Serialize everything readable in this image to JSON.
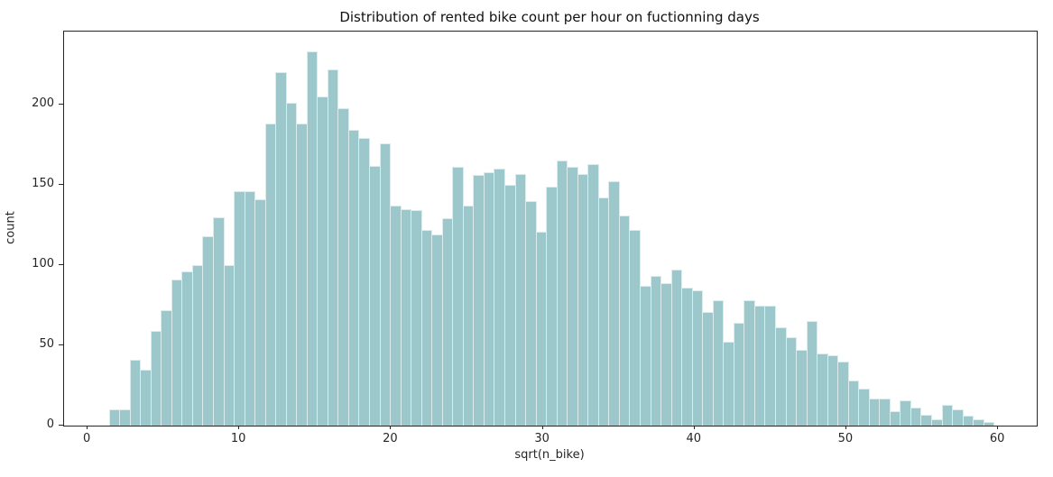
{
  "chart_data": {
    "type": "bar",
    "subtype": "histogram",
    "title": "Distribution of rented bike count per hour on fuctionning days",
    "xlabel": "sqrt(n_bike)",
    "ylabel": "count",
    "bin_start": 1.4,
    "bin_width": 0.686,
    "counts": [
      10,
      10,
      41,
      35,
      59,
      72,
      91,
      96,
      100,
      118,
      130,
      100,
      146,
      146,
      141,
      188,
      220,
      201,
      188,
      233,
      205,
      222,
      198,
      184,
      179,
      162,
      176,
      137,
      135,
      134,
      122,
      119,
      129,
      161,
      137,
      156,
      158,
      160,
      150,
      157,
      140,
      121,
      149,
      165,
      161,
      157,
      163,
      142,
      152,
      131,
      122,
      87,
      93,
      89,
      97,
      86,
      84,
      71,
      78,
      52,
      64,
      78,
      75,
      75,
      61,
      55,
      47,
      65,
      45,
      44,
      40,
      28,
      23,
      17,
      17,
      9,
      16,
      11,
      7,
      4,
      13,
      10,
      6,
      4,
      2
    ],
    "x_ticks": [
      0,
      10,
      20,
      30,
      40,
      50,
      60
    ],
    "y_ticks": [
      0,
      50,
      100,
      150,
      200
    ],
    "xlim": [
      -1.55,
      62.55
    ],
    "ylim": [
      0,
      245.5
    ],
    "grid": false,
    "legend": null,
    "bar_color": "#9cc8cb",
    "bar_edge_color": "rgba(255,255,255,0.65)",
    "axis_color": "#262626",
    "background_color": "#ffffff"
  }
}
